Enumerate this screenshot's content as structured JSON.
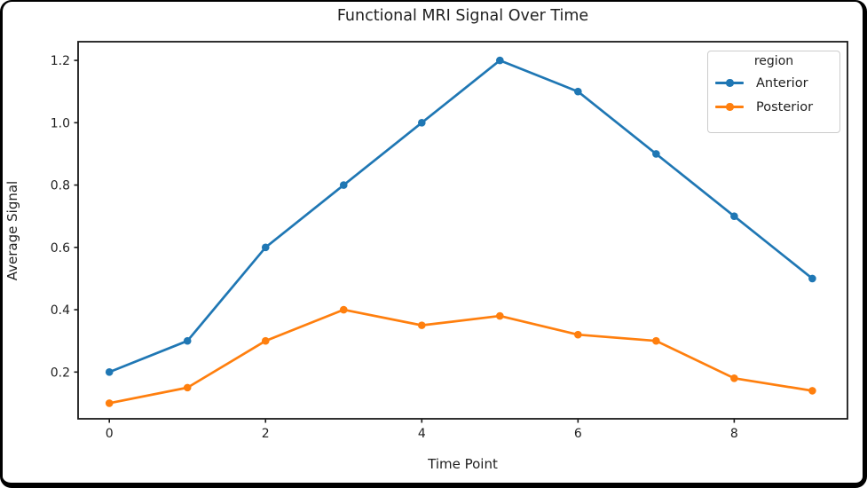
{
  "frame": {
    "border_color": "#000000",
    "background": "#ffffff"
  },
  "chart_data": {
    "type": "line",
    "title": "Functional MRI Signal Over Time",
    "xlabel": "Time Point",
    "ylabel": "Average Signal",
    "x": [
      0,
      1,
      2,
      3,
      4,
      5,
      6,
      7,
      8,
      9
    ],
    "series": [
      {
        "name": "Anterior",
        "color": "#1f77b4",
        "values": [
          0.2,
          0.3,
          0.6,
          0.8,
          1.0,
          1.2,
          1.1,
          0.9,
          0.7,
          0.5
        ]
      },
      {
        "name": "Posterior",
        "color": "#ff7f0e",
        "values": [
          0.1,
          0.15,
          0.3,
          0.4,
          0.35,
          0.38,
          0.32,
          0.3,
          0.18,
          0.14
        ]
      }
    ],
    "xticks": [
      0,
      2,
      4,
      6,
      8
    ],
    "yticks": [
      0.2,
      0.4,
      0.6,
      0.8,
      1.0,
      1.2
    ],
    "xlim": [
      -0.4,
      9.45
    ],
    "ylim": [
      0.05,
      1.26
    ],
    "grid": false,
    "marker": "circle",
    "legend": {
      "title": "region",
      "position": "upper right"
    },
    "style": {
      "line_width": 2.7,
      "marker_radius": 4.3,
      "spine_color": "#1a1a1a",
      "text_color": "#1f1f1f",
      "tick_font_size": 14
    }
  }
}
